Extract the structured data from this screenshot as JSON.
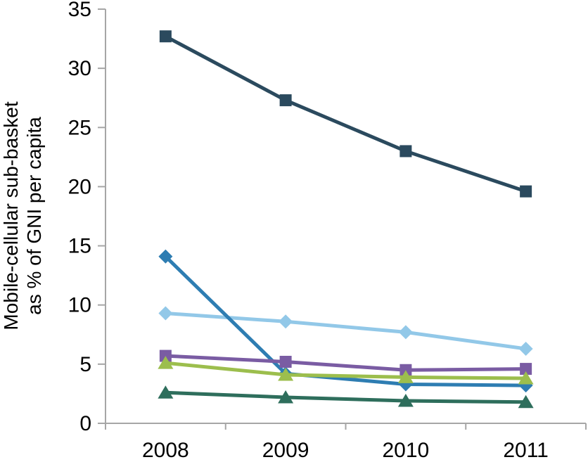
{
  "chart_data": {
    "type": "line",
    "title": "",
    "xlabel": "",
    "ylabel_line1": "Mobile-cellular sub-basket",
    "ylabel_line2": "as % of GNI per capita",
    "categories": [
      "2008",
      "2009",
      "2010",
      "2011"
    ],
    "yticks": [
      "0",
      "5",
      "10",
      "15",
      "20",
      "25",
      "30",
      "35"
    ],
    "ylim": [
      0,
      35
    ],
    "grid": false,
    "legend": "none",
    "axis_color": "#A6A6A6",
    "text_color": "#000000",
    "series": [
      {
        "name": "dark-navy-squares",
        "marker": "square",
        "color": "#2B4A5E",
        "values": [
          32.7,
          27.3,
          23.0,
          19.6
        ]
      },
      {
        "name": "light-blue-diamonds",
        "marker": "diamond",
        "color": "#92C8E8",
        "values": [
          9.3,
          8.6,
          7.7,
          6.3
        ]
      },
      {
        "name": "blue-diamonds",
        "marker": "diamond",
        "color": "#2E7DB2",
        "values": [
          14.1,
          4.2,
          3.3,
          3.2
        ]
      },
      {
        "name": "purple-squares",
        "marker": "square",
        "color": "#7A5CA3",
        "values": [
          5.7,
          5.2,
          4.5,
          4.6
        ]
      },
      {
        "name": "yellow-green-triangles",
        "marker": "triangle",
        "color": "#9CBE4D",
        "values": [
          5.1,
          4.1,
          3.9,
          3.8
        ]
      },
      {
        "name": "dark-green-triangles",
        "marker": "triangle",
        "color": "#2E6E5C",
        "values": [
          2.6,
          2.2,
          1.9,
          1.8
        ]
      }
    ]
  }
}
